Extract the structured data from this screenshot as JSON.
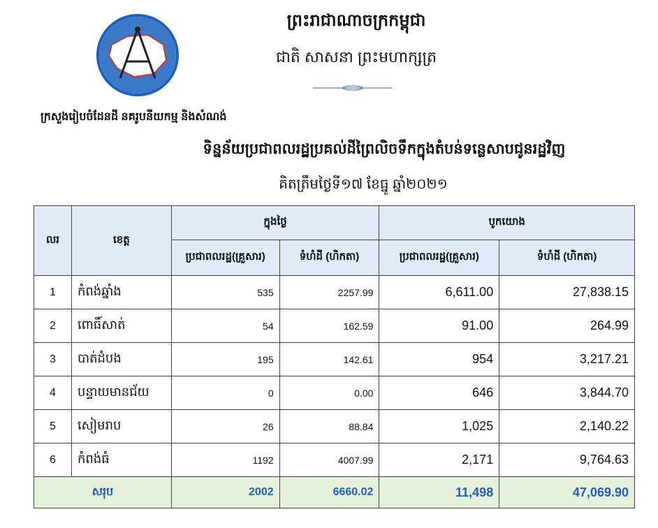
{
  "header": {
    "kingdom": "ព្រះរាជាណាចក្រកម្ពុជា",
    "motto": "ជាតិ សាសនា ព្រះមហាក្សត្រ",
    "ministry": "ក្រសួងរៀបចំដែនដី នគរូបនីយកម្ម និងសំណង់",
    "logo_icon": "compass-map-logo"
  },
  "title": "ទិន្នន័យប្រជាពលរដ្ឋប្រគល់ដីព្រៃលិចទឹកក្នុងតំបន់ទន្លេសាបជូនរដ្ឋវិញ",
  "subtitle": "គិតត្រឹមថ្ងៃទី១៧ ខែធ្នូ ឆ្នាំ២០២១",
  "table": {
    "headers": {
      "no": "លរ",
      "province": "ខេត្ត",
      "today": "ក្នុងថ្ងៃ",
      "cumulative": "បូកយោង",
      "families": "ប្រជាពលរដ្ឋ(គ្រួសារ)",
      "area": "ទំហំដី (ហិកតា)"
    },
    "rows": [
      {
        "no": "1",
        "province": "កំពង់ឆ្នាំង",
        "today_families": "535",
        "today_area": "2257.99",
        "cum_families": "6,611.00",
        "cum_area": "27,838.15"
      },
      {
        "no": "2",
        "province": "ពោធិ៍សាត់",
        "today_families": "54",
        "today_area": "162.59",
        "cum_families": "91.00",
        "cum_area": "264.99"
      },
      {
        "no": "3",
        "province": "បាត់ដំបង",
        "today_families": "195",
        "today_area": "142.61",
        "cum_families": "954",
        "cum_area": "3,217.21"
      },
      {
        "no": "4",
        "province": "បន្ទាយមានជ័យ",
        "today_families": "0",
        "today_area": "0.00",
        "cum_families": "646",
        "cum_area": "3,844.70"
      },
      {
        "no": "5",
        "province": "សៀមរាប",
        "today_families": "26",
        "today_area": "88.84",
        "cum_families": "1,025",
        "cum_area": "2,140.22"
      },
      {
        "no": "6",
        "province": "កំពង់ធំ",
        "today_families": "1192",
        "today_area": "4007.99",
        "cum_families": "2,171",
        "cum_area": "9,764.63"
      }
    ],
    "total": {
      "label": "សរុប",
      "today_families": "2002",
      "today_area": "6660.02",
      "cum_families": "11,498",
      "cum_area": "47,069.90"
    }
  }
}
